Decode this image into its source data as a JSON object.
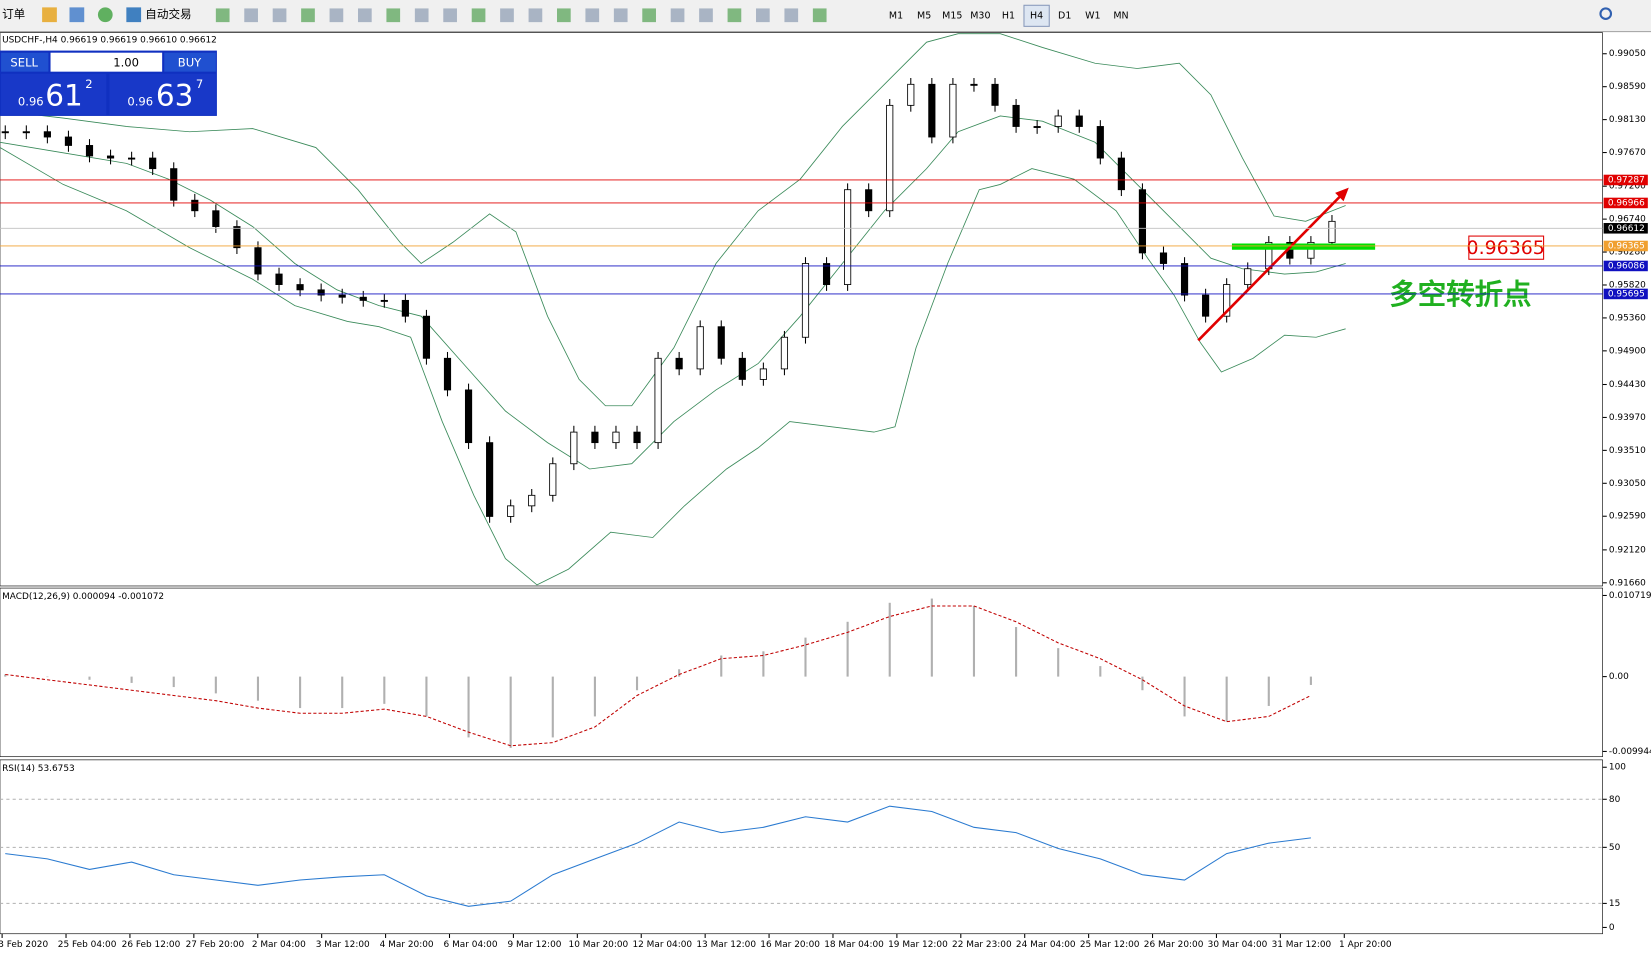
{
  "toolbar": {
    "new_order": "订单",
    "auto_trading": "自动交易",
    "timeframes": [
      "M1",
      "M5",
      "M15",
      "M30",
      "H1",
      "H4",
      "D1",
      "W1",
      "MN"
    ]
  },
  "trade_panel": {
    "sell": "SELL",
    "buy": "BUY",
    "lot": "1.00",
    "bid": {
      "prefix": "0.96",
      "big": "61",
      "small": "2"
    },
    "ask": {
      "prefix": "0.96",
      "big": "63",
      "small": "7"
    }
  },
  "chart": {
    "symbol_info": "USDCHF-,H4 0.96619 0.96619 0.96610 0.96612",
    "price_axis": [
      "0.99050",
      "0.98590",
      "0.98130",
      "0.97670",
      "0.97200",
      "0.96740",
      "0.96280",
      "0.95820",
      "0.95360",
      "0.94900",
      "0.94430",
      "0.93970",
      "0.93510",
      "0.93050",
      "0.92590",
      "0.92120",
      "0.91660"
    ],
    "levels": [
      {
        "label": "0.97287",
        "color": "#e00000"
      },
      {
        "label": "0.96966",
        "color": "#e00000"
      },
      {
        "label": "0.96612",
        "color": "#000000"
      },
      {
        "label": "0.96365",
        "color": "#f0a030"
      },
      {
        "label": "0.96086",
        "color": "#1010c0"
      },
      {
        "label": "0.95695",
        "color": "#1010c0"
      }
    ],
    "closes": [
      0.97961,
      0.97961,
      0.97887,
      0.97769,
      0.97622,
      0.97593,
      0.97593,
      0.97445,
      0.97004,
      0.96857,
      0.96636,
      0.96341,
      0.95973,
      0.95826,
      0.95752,
      0.95679,
      0.95649,
      0.95605,
      0.95605,
      0.95384,
      0.94796,
      0.94354,
      0.93618,
      0.92587,
      0.92735,
      0.92882,
      0.93323,
      0.93765,
      0.93618,
      0.93765,
      0.93618,
      0.94796,
      0.94648,
      0.95237,
      0.94796,
      0.94501,
      0.94648,
      0.9509,
      0.9612,
      0.95826,
      0.97151,
      0.96857,
      0.98329,
      0.98623,
      0.97887,
      0.98623,
      0.98623,
      0.98329,
      0.98034,
      0.98034,
      0.98181,
      0.98034,
      0.97593,
      0.97151,
      0.96268,
      0.9612,
      0.95679,
      0.95384,
      0.95826,
      0.96047,
      0.96415,
      0.96194,
      0.96415,
      0.96709
    ],
    "annotation_price": "0.96365",
    "annotation_text": "多空转折点"
  },
  "macd": {
    "label": "MACD(12,26,9) 0.000094 -0.001072",
    "axis": [
      "0.010719",
      "0.00",
      "-0.009944"
    ],
    "histogram": [
      0.00028,
      0,
      -0.00042,
      -0.00084,
      -0.00139,
      -0.00223,
      -0.0032,
      -0.00418,
      -0.00418,
      -0.00362,
      -0.00529,
      -0.00808,
      -0.00947,
      -0.00808,
      -0.00529,
      -0.00181,
      0.00097,
      0.00279,
      0.00334,
      0.00515,
      0.00724,
      0.00975,
      0.01031,
      0.00933,
      0.00655,
      0.00376,
      0.00139,
      -0.00181,
      -0.00529,
      -0.00599,
      -0.0039,
      -0.00111
    ],
    "signal": [
      0.00028,
      -0.00042,
      -0.00111,
      -0.00181,
      -0.00251,
      -0.0032,
      -0.00418,
      -0.00487,
      -0.00487,
      -0.00432,
      -0.00529,
      -0.00738,
      -0.00919,
      -0.00877,
      -0.00669,
      -0.00251,
      0.00028,
      0.00237,
      0.00279,
      0.00418,
      0.00585,
      0.00794,
      0.00933,
      0.00933,
      0.00724,
      0.00446,
      0.00237,
      -0.00042,
      -0.0039,
      -0.00599,
      -0.00529,
      -0.00251
    ]
  },
  "rsi": {
    "label": "RSI(14) 53.6753",
    "axis": [
      "100",
      "80",
      "50",
      "15",
      "0"
    ],
    "values": [
      46.1,
      42.8,
      36.2,
      40.8,
      32.9,
      29.6,
      26.3,
      29.6,
      31.6,
      32.9,
      19.7,
      13.2,
      16.4,
      32.9,
      42.8,
      52.6,
      65.8,
      59.2,
      62.5,
      69.1,
      65.8,
      75.7,
      72.4,
      62.5,
      59.2,
      49.3,
      42.8,
      32.9,
      29.6,
      46.1,
      52.6,
      55.9
    ]
  },
  "time_axis": [
    "3 Feb 2020",
    "25 Feb 04:00",
    "26 Feb 12:00",
    "27 Feb 20:00",
    "2 Mar 04:00",
    "3 Mar 12:00",
    "4 Mar 20:00",
    "6 Mar 04:00",
    "9 Mar 12:00",
    "10 Mar 20:00",
    "12 Mar 04:00",
    "13 Mar 12:00",
    "16 Mar 20:00",
    "18 Mar 04:00",
    "19 Mar 12:00",
    "22 Mar 23:00",
    "24 Mar 04:00",
    "25 Mar 12:00",
    "26 Mar 20:00",
    "30 Mar 04:00",
    "31 Mar 12:00",
    "1 Apr 20:00"
  ]
}
